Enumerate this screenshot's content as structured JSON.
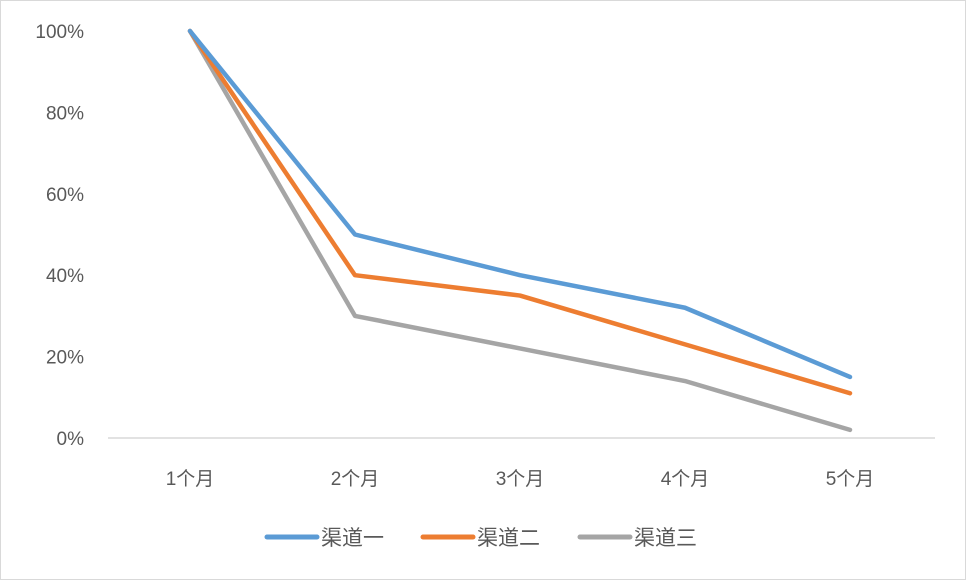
{
  "chart_data": {
    "type": "line",
    "title": "",
    "xlabel": "",
    "ylabel": "",
    "categories": [
      "1个月",
      "2个月",
      "3个月",
      "4个月",
      "5个月"
    ],
    "ylim": [
      0,
      100
    ],
    "y_ticks": [
      "0%",
      "20%",
      "40%",
      "60%",
      "80%",
      "100%"
    ],
    "grid": false,
    "legend_position": "bottom",
    "series": [
      {
        "name": "渠道一",
        "color": "#5B9BD5",
        "values": [
          100,
          50,
          40,
          32,
          15
        ]
      },
      {
        "name": "渠道二",
        "color": "#ED7D31",
        "values": [
          100,
          40,
          35,
          23,
          11
        ]
      },
      {
        "name": "渠道三",
        "color": "#A5A5A5",
        "values": [
          100,
          30,
          22,
          14,
          2
        ]
      }
    ]
  }
}
